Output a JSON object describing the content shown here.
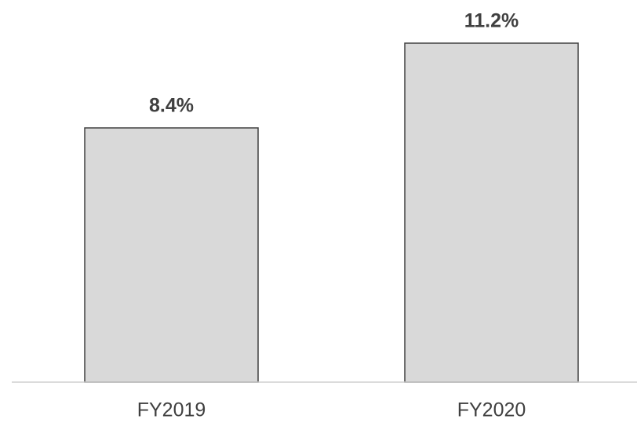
{
  "chart_data": {
    "type": "bar",
    "categories": [
      "FY2019",
      "FY2020"
    ],
    "values": [
      8.4,
      11.2
    ],
    "value_labels": [
      "8.4%",
      "11.2%"
    ],
    "color": "#d9d9d9"
  }
}
